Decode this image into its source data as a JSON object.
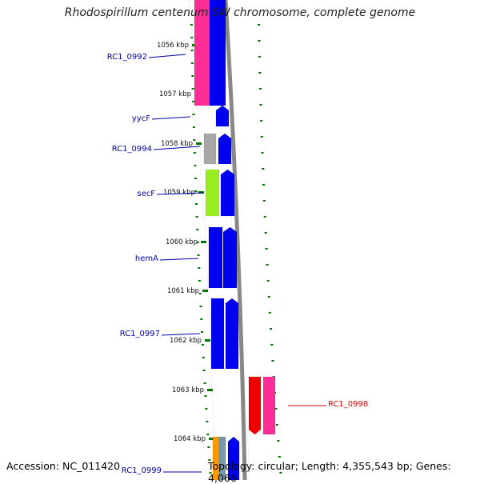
{
  "header": {
    "title": "Rhodospirillum centenum SW chromosome, complete genome"
  },
  "footer": {
    "accession": "Accession: NC_011420",
    "summary": "Topology: circular; Length: 4,355,543 bp; Genes: 4,066"
  },
  "colors": {
    "blue_gene": "#0000ee",
    "pink_gene": "#ff2d96",
    "gray_gene": "#a8a8a8",
    "lime_gene": "#99ee22",
    "red_gene": "#ee0000",
    "orange_gene": "#ff9900",
    "steel_gene": "#7799aa",
    "tick": "#007700",
    "label_blue": "#0000aa",
    "label_red": "#dd0000",
    "track_gray": "#888888"
  },
  "scale": {
    "ticks": [
      "1056 kbp",
      "1057 kbp",
      "1058 kbp",
      "1059 kbp",
      "1060 kbp",
      "1061 kbp",
      "1062 kbp",
      "1063 kbp",
      "1064 kbp"
    ]
  },
  "gene_labels": [
    {
      "name": "RC1_0992",
      "color": "label_blue",
      "side": "left"
    },
    {
      "name": "yycF",
      "color": "label_blue",
      "side": "left"
    },
    {
      "name": "RC1_0994",
      "color": "label_blue",
      "side": "left"
    },
    {
      "name": "secF",
      "color": "label_blue",
      "side": "left"
    },
    {
      "name": "hemA",
      "color": "label_blue",
      "side": "left"
    },
    {
      "name": "RC1_0997",
      "color": "label_blue",
      "side": "left"
    },
    {
      "name": "RC1_0998",
      "color": "label_red",
      "side": "right"
    },
    {
      "name": "RC1_0999",
      "color": "label_blue",
      "side": "left"
    }
  ]
}
